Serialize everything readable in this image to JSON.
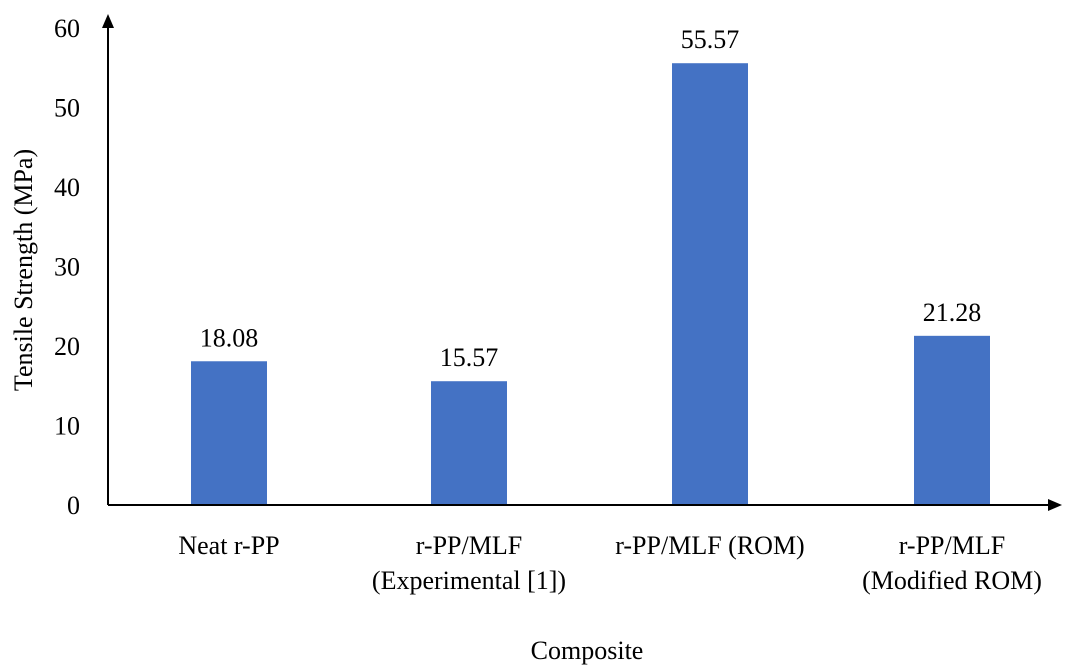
{
  "chart_data": {
    "type": "bar",
    "categories": [
      [
        "Neat r-PP"
      ],
      [
        "r-PP/MLF",
        "(Experimental [1])"
      ],
      [
        "r-PP/MLF (ROM)"
      ],
      [
        "r-PP/MLF",
        "(Modified ROM)"
      ]
    ],
    "values": [
      18.08,
      15.57,
      55.57,
      21.28
    ],
    "data_labels": [
      "18.08",
      "15.57",
      "55.57",
      "21.28"
    ],
    "xlabel": "Composite",
    "ylabel": "Tensile Strength (MPa)",
    "ylim": [
      0,
      60
    ],
    "yticks": [
      "0",
      "10",
      "20",
      "30",
      "40",
      "50",
      "60"
    ],
    "bar_color": "#4472c4",
    "axis_color": "#000000",
    "grid": false,
    "legend": "none"
  }
}
